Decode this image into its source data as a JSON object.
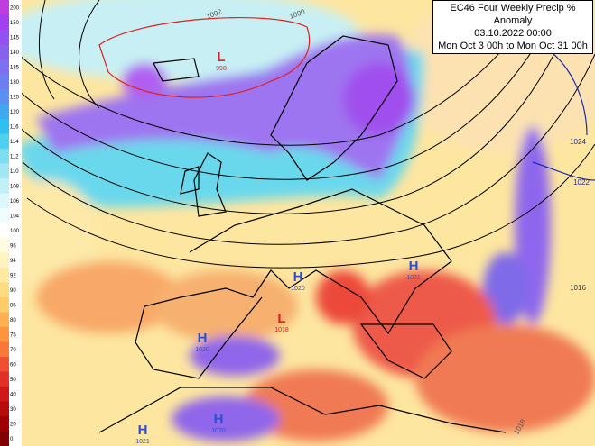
{
  "title_box": {
    "lines": [
      "EC46 Four Weekly Precip % Anomaly",
      "03.10.2022 00:00",
      "Mon Oct 3 00h to Mon Oct 31 00h"
    ]
  },
  "colorbar": {
    "labels": [
      200,
      150,
      145,
      140,
      135,
      130,
      125,
      120,
      116,
      114,
      112,
      110,
      108,
      106,
      104,
      100,
      96,
      94,
      92,
      90,
      85,
      80,
      75,
      70,
      60,
      50,
      40,
      30,
      20,
      0
    ]
  },
  "pressure_centers": [
    {
      "letter": "L",
      "value": "998"
    },
    {
      "letter": "H",
      "value": "1020"
    },
    {
      "letter": "H",
      "value": "1021"
    },
    {
      "letter": "L",
      "value": "1018"
    },
    {
      "letter": "H",
      "value": "1020"
    },
    {
      "letter": "H",
      "value": "1021"
    },
    {
      "letter": "H",
      "value": "1020"
    }
  ],
  "isobar_labels": [
    "1002",
    "1000",
    "1024",
    "1022",
    "1016",
    "1018"
  ]
}
